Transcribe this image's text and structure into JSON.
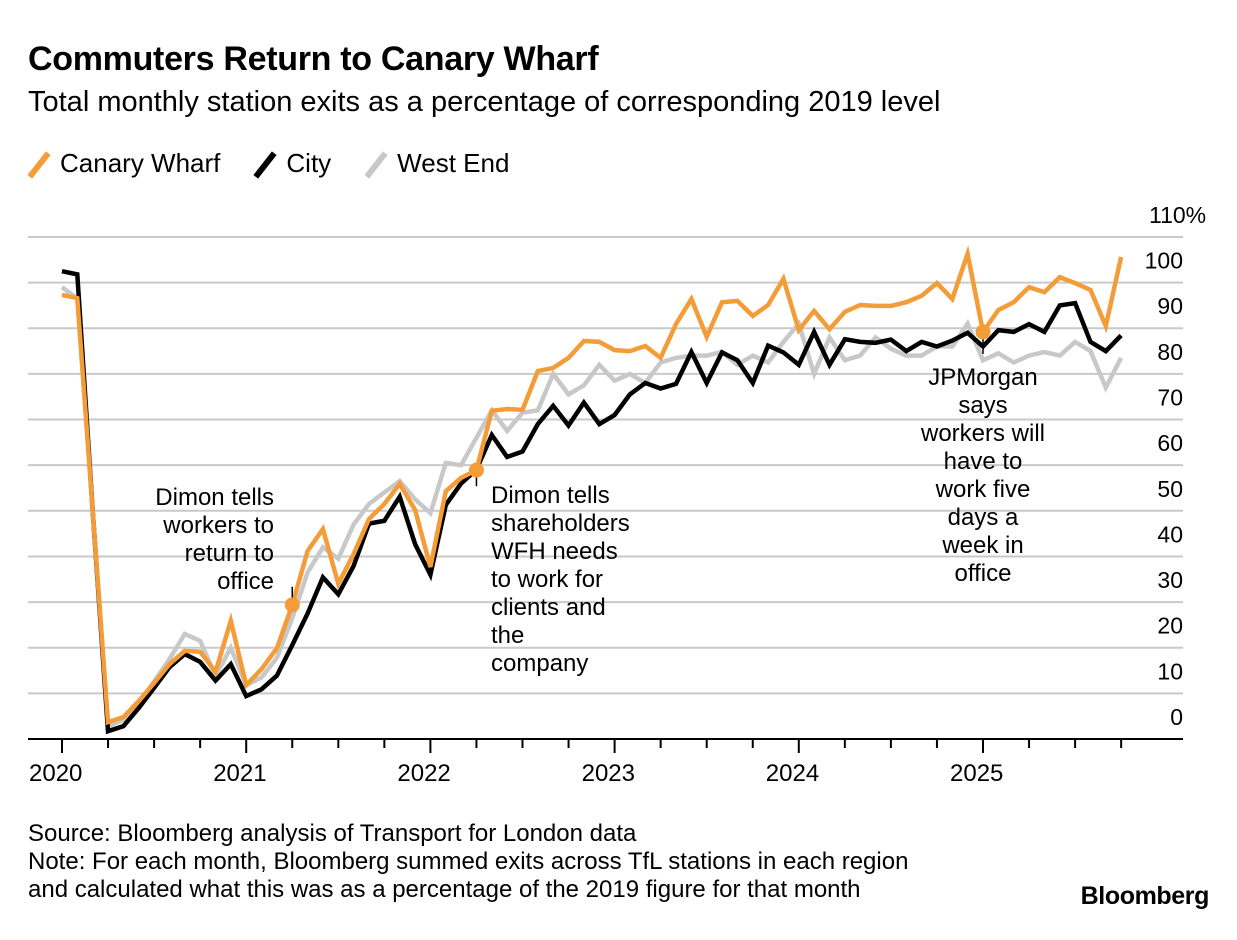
{
  "header": {
    "title": "Commuters Return to Canary Wharf",
    "subtitle": "Total monthly station exits as a percentage of corresponding 2019 level"
  },
  "footer": {
    "source": "Source: Bloomberg analysis of Transport for London data",
    "note_line1": "Note: For each month, Bloomberg summed exits across TfL stations in each region",
    "note_line2": "and calculated what this was as a percentage of the 2019 figure for that month",
    "brand": "Bloomberg"
  },
  "chart_data": {
    "type": "line",
    "title": "Commuters Return to Canary Wharf",
    "subtitle": "Total monthly station exits as a percentage of corresponding 2019 level",
    "xlabel": "",
    "ylabel": "",
    "x_start": "2020-01",
    "x_end": "2025-10",
    "x_tick_labels": [
      "2020",
      "2021",
      "2022",
      "2023",
      "2024",
      "2025"
    ],
    "y_tick_labels": [
      "0",
      "10",
      "20",
      "30",
      "40",
      "50",
      "60",
      "70",
      "80",
      "90",
      "100",
      "110%"
    ],
    "ylim": [
      0,
      110
    ],
    "grid": true,
    "legend_position": "top-left",
    "series": [
      {
        "name": "Canary Wharf",
        "color": "#f39c38",
        "values": [
          97.3,
          96.6,
          50,
          3.7,
          4.8,
          8.3,
          12.3,
          16.4,
          19.3,
          19.1,
          14.7,
          25.9,
          11.8,
          15.3,
          19.9,
          29.4,
          41.2,
          46.0,
          34.0,
          40.5,
          48.2,
          51.5,
          55.9,
          50.2,
          37.7,
          54.3,
          57.2,
          58.9,
          71.9,
          72.3,
          72.1,
          80.6,
          81.3,
          83.5,
          87.2,
          87.0,
          85.2,
          85.0,
          86.1,
          83.5,
          90.9,
          96.4,
          88.1,
          95.7,
          96.0,
          92.7,
          95.1,
          100.8,
          89.6,
          93.8,
          89.8,
          93.6,
          95.1,
          94.9,
          94.9,
          95.7,
          97.1,
          99.9,
          96.4,
          106.3,
          89.2,
          94.0,
          95.7,
          99.0,
          97.9,
          101.2,
          99.9,
          98.4,
          90.5,
          105.6
        ]
      },
      {
        "name": "City",
        "color": "#000000",
        "values": [
          102.5,
          101.8,
          50,
          1.7,
          2.8,
          6.8,
          11.2,
          15.7,
          18.6,
          16.9,
          12.8,
          16.4,
          9.4,
          10.9,
          13.9,
          20.6,
          27.5,
          35.4,
          31.7,
          37.9,
          47.2,
          47.8,
          53.1,
          42.7,
          36.0,
          51.3,
          56.0,
          59.0,
          66.6,
          61.8,
          63.0,
          69.0,
          73.0,
          68.7,
          73.7,
          69.0,
          71.0,
          75.5,
          78.0,
          76.8,
          77.8,
          84.8,
          78.0,
          84.7,
          83.0,
          78.0,
          86.2,
          84.7,
          82.0,
          89.2,
          82.0,
          87.6,
          87.0,
          86.8,
          87.5,
          85.0,
          87.0,
          86.0,
          87.3,
          89.0,
          86.0,
          89.6,
          89.2,
          90.9,
          89.2,
          95.0,
          95.5,
          87.0,
          85.0,
          88.4
        ]
      },
      {
        "name": "West End",
        "color": "#c8c8c8",
        "values": [
          99.0,
          96.5,
          50,
          2.8,
          4.2,
          7.8,
          12.6,
          17.5,
          23.0,
          21.5,
          13.8,
          20.0,
          11.8,
          13.5,
          17.8,
          26.5,
          36.5,
          42.0,
          39.5,
          47.0,
          51.5,
          54.0,
          56.5,
          52.5,
          49.5,
          60.5,
          60.0,
          66.0,
          72.0,
          67.5,
          71.5,
          72.0,
          80.0,
          75.5,
          77.5,
          82.0,
          78.5,
          80.0,
          78.0,
          82.5,
          83.5,
          84.0,
          84.0,
          84.8,
          82.0,
          84.0,
          82.5,
          87.0,
          91.0,
          80.0,
          88.0,
          83.0,
          84.0,
          88.0,
          85.5,
          84.0,
          84.0,
          86.0,
          86.0,
          91.0,
          83.0,
          84.5,
          82.5,
          84.0,
          84.8,
          84.0,
          87.0,
          85.0,
          77.0,
          83.5
        ]
      }
    ],
    "annotations": [
      {
        "month_index": 15,
        "series": "Canary Wharf",
        "lines": [
          "Dimon tells",
          "workers to",
          "return to",
          "office"
        ]
      },
      {
        "month_index": 27,
        "series": "Canary Wharf",
        "lines": [
          "Dimon tells",
          "shareholders",
          "WFH needs",
          "to work for",
          "clients and",
          "the",
          "company"
        ]
      },
      {
        "month_index": 60,
        "series": "Canary Wharf",
        "lines": [
          "JPMorgan",
          "says",
          "workers will",
          "have to",
          "work five",
          "days a",
          "week in",
          "office"
        ]
      }
    ]
  }
}
